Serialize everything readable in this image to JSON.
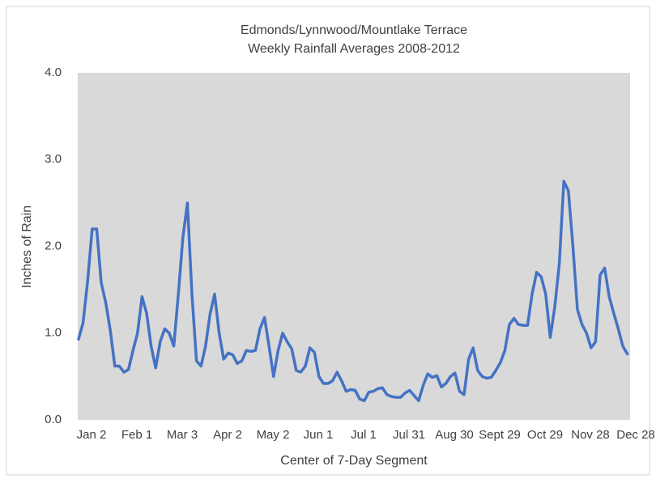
{
  "chart_data": {
    "type": "line",
    "title": "Edmonds/Lynnwood/Mountlake Terrace",
    "subtitle": "Weekly Rainfall Averages 2008-2012",
    "x_label": "Center of 7-Day Segment",
    "y_label": "Inches of Rain",
    "categories": [
      "Jan 2",
      null,
      null,
      null,
      null,
      null,
      null,
      null,
      null,
      null,
      "Feb 1",
      null,
      null,
      null,
      null,
      null,
      null,
      null,
      null,
      null,
      "Mar 3",
      null,
      null,
      null,
      null,
      null,
      null,
      null,
      null,
      null,
      "Apr 2",
      null,
      null,
      null,
      null,
      null,
      null,
      null,
      null,
      null,
      "May 2",
      null,
      null,
      null,
      null,
      null,
      null,
      null,
      null,
      null,
      "Jun 1",
      null,
      null,
      null,
      null,
      null,
      null,
      null,
      null,
      null,
      "Jul 1",
      null,
      null,
      null,
      null,
      null,
      null,
      null,
      null,
      null,
      "Jul 31",
      null,
      null,
      null,
      null,
      null,
      null,
      null,
      null,
      null,
      "Aug 30",
      null,
      null,
      null,
      null,
      null,
      null,
      null,
      null,
      null,
      "Sept 29",
      null,
      null,
      null,
      null,
      null,
      null,
      null,
      null,
      null,
      "Oct 29",
      null,
      null,
      null,
      null,
      null,
      null,
      null,
      null,
      null,
      "Nov 28",
      null,
      null,
      null,
      null,
      null,
      null,
      null,
      null,
      null,
      "Dec 28",
      null
    ],
    "series": [
      {
        "name": "Weekly Rainfall",
        "color": "#4472c4",
        "values": [
          0.93,
          1.12,
          1.6,
          2.2,
          2.2,
          1.58,
          1.35,
          1.03,
          0.62,
          0.62,
          0.55,
          0.58,
          0.8,
          1.0,
          1.42,
          1.23,
          0.85,
          0.6,
          0.9,
          1.05,
          1.0,
          0.85,
          1.45,
          2.1,
          2.5,
          1.45,
          0.68,
          0.62,
          0.85,
          1.22,
          1.45,
          1.0,
          0.7,
          0.77,
          0.75,
          0.65,
          0.68,
          0.8,
          0.79,
          0.8,
          1.05,
          1.18,
          0.85,
          0.5,
          0.8,
          1.0,
          0.9,
          0.82,
          0.57,
          0.55,
          0.62,
          0.83,
          0.78,
          0.5,
          0.42,
          0.42,
          0.45,
          0.55,
          0.45,
          0.33,
          0.35,
          0.34,
          0.24,
          0.22,
          0.32,
          0.33,
          0.36,
          0.37,
          0.29,
          0.27,
          0.26,
          0.26,
          0.31,
          0.34,
          0.28,
          0.22,
          0.4,
          0.53,
          0.49,
          0.51,
          0.38,
          0.42,
          0.5,
          0.54,
          0.33,
          0.29,
          0.7,
          0.83,
          0.57,
          0.5,
          0.48,
          0.49,
          0.57,
          0.66,
          0.8,
          1.1,
          1.17,
          1.1,
          1.09,
          1.09,
          1.45,
          1.7,
          1.65,
          1.45,
          0.95,
          1.3,
          1.8,
          2.75,
          2.64,
          2.0,
          1.27,
          1.1,
          1.0,
          0.83,
          0.9,
          1.67,
          1.75,
          1.42,
          1.23,
          1.05,
          0.85,
          0.76
        ]
      }
    ],
    "ylim": [
      0,
      4
    ],
    "yticks": [
      {
        "value": 0,
        "label": "0.0"
      },
      {
        "value": 1,
        "label": "1.0"
      },
      {
        "value": 2,
        "label": "2.0"
      },
      {
        "value": 3,
        "label": "3.0"
      },
      {
        "value": 4,
        "label": "4.0"
      }
    ],
    "grid": false,
    "plot_background": "#d9d9d9"
  }
}
